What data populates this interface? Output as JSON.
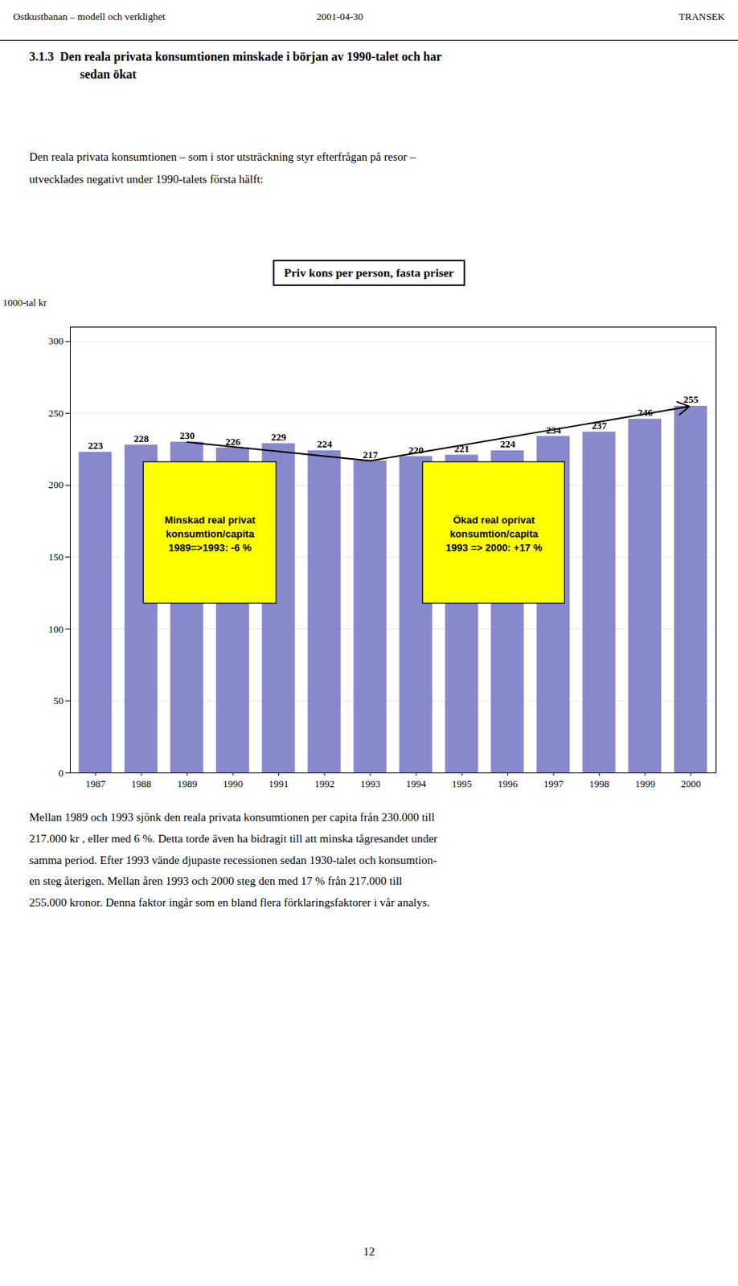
{
  "header": {
    "left": "Ostkustbanan – modell och verklighet",
    "center": "2001-04-30",
    "right": "TRANSEK"
  },
  "section": {
    "number": "3.1.3",
    "title_lines": [
      "Den reala privata konsumtionen minskade i början av 1990-talet och har",
      "sedan ökat"
    ]
  },
  "intro": [
    "Den reala privata konsumtionen – som i stor utsträckning styr efterfrågan på resor –",
    "utvecklades negativt under 1990-talets första hälft:"
  ],
  "footer": [
    "Mellan 1989 och 1993 sjönk den reala privata konsumtionen per capita från 230.000 till",
    "217.000 kr , eller med 6 %. Detta torde även ha bidragit till att minska tågresandet under",
    "samma period. Efter 1993 vände djupaste recessionen sedan 1930-talet och konsumtion-",
    "en steg återigen. Mellan åren 1993 och 2000 steg den med 17 % från 217.000 till",
    "255.000 kronor. Denna faktor ingår som en bland flera förklaringsfaktorer i vår analys."
  ],
  "page_number": "12",
  "chart_data": {
    "type": "bar",
    "title": "Priv kons per person, fasta priser",
    "y_label": "1000-tal kr",
    "categories": [
      "1987",
      "1988",
      "1989",
      "1990",
      "1991",
      "1992",
      "1993",
      "1994",
      "1995",
      "1996",
      "1997",
      "1998",
      "1999",
      "2000"
    ],
    "values": [
      223,
      228,
      230,
      226,
      229,
      224,
      217,
      220,
      221,
      224,
      234,
      237,
      246,
      255
    ],
    "color": "#8888cc",
    "ylim": [
      0,
      310
    ],
    "yticks": [
      0,
      50,
      100,
      150,
      200,
      250,
      300
    ],
    "grid": true,
    "data_labels": true,
    "annotations": [
      {
        "text": "Minskad real privat\nkonsumtion/capita\n1989=>1993: -6 %",
        "color": "#ffff00"
      },
      {
        "text": "Ökad real oprivat\nkonsumtion/capita\n1993 => 2000: +17 %",
        "color": "#ffff00"
      }
    ],
    "trend_line": [
      "1989",
      "1993",
      "2000"
    ]
  }
}
